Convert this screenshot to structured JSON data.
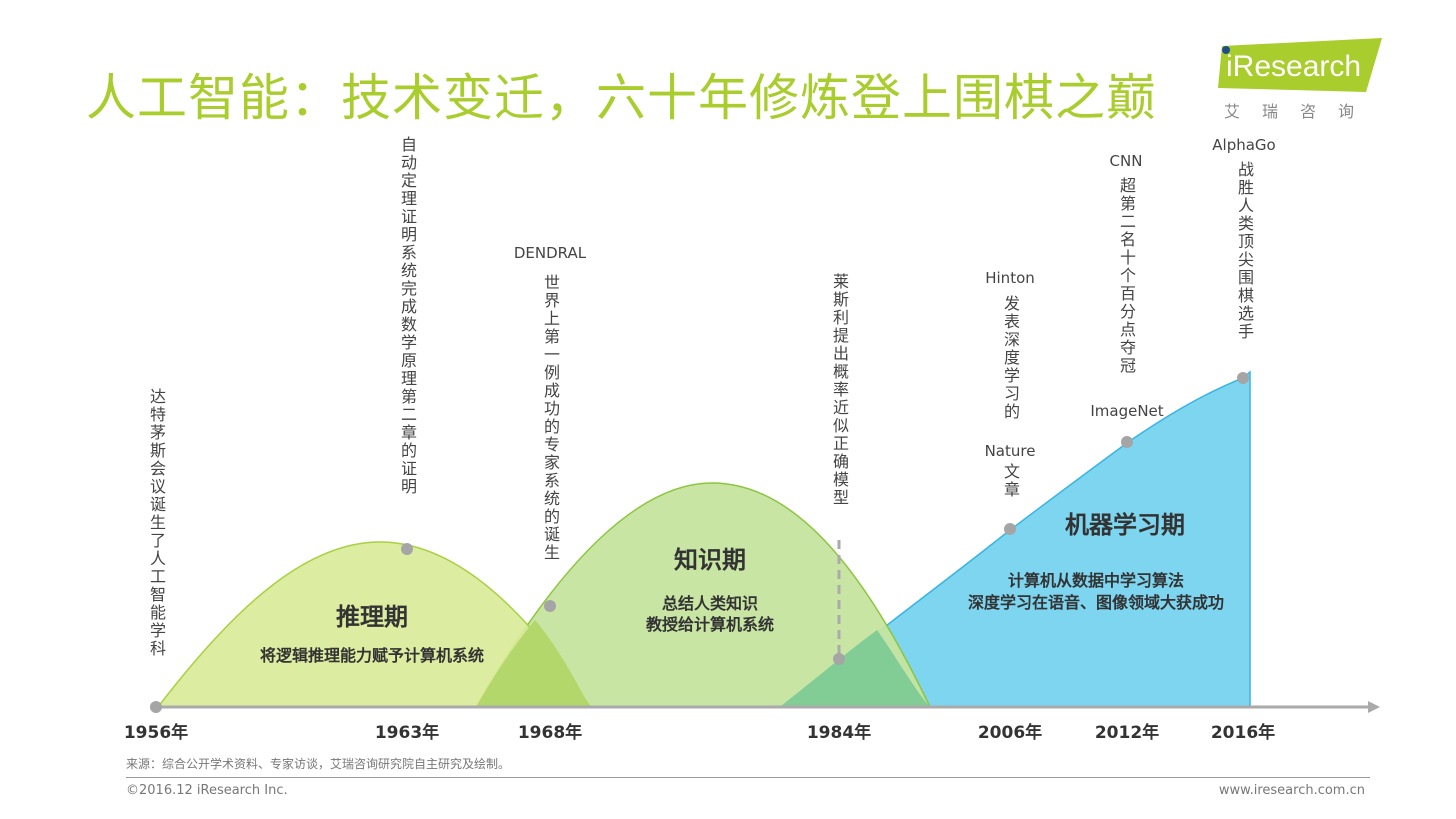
{
  "title": "人工智能：技术变迁，六十年修炼登上围棋之巅",
  "logo": {
    "word": "iResearch",
    "sub": "艾瑞咨询"
  },
  "years": [
    "1956年",
    "1963年",
    "1968年",
    "1984年",
    "2006年",
    "2012年",
    "2016年"
  ],
  "events": {
    "e1956": "达特茅斯会议诞生了人工智能学科",
    "e1963": "自动定理证明系统完成数学原理第二章的证明",
    "e1968_head": "DENDRAL",
    "e1968": "世界上第一例成功的专家系统的诞生",
    "e1984": "莱斯利提出概率近似正确模型",
    "e2006_head": "Hinton",
    "e2006": "发表深度学习的",
    "e2006_mid": "Nature",
    "e2006_tail": "文章",
    "e2012_head": "CNN",
    "e2012": "超第二名十个百分点夺冠",
    "e2012_tail": "ImageNet",
    "e2016_head": "AlphaGo",
    "e2016": "战胜人类顶尖围棋选手"
  },
  "periods": {
    "reasoning": {
      "name": "推理期",
      "desc1": "将逻辑推理能力赋予计算机系统"
    },
    "knowledge": {
      "name": "知识期",
      "desc1": "总结人类知识",
      "desc2": "教授给计算机系统"
    },
    "learning": {
      "name": "机器学习期",
      "desc1": "计算机从数据中学习算法",
      "desc2": "深度学习在语音、图像领域大获成功"
    }
  },
  "footer": {
    "source": "来源：综合公开学术资料、专家访谈，艾瑞咨询研究院自主研究及绘制。",
    "copyright": "©2016.12 iResearch Inc.",
    "website": "www.iresearch.com.cn"
  },
  "colors": {
    "reasoning": "#d6e796",
    "knowledge": "#bfe09a",
    "learning": "#6fd2f0",
    "overlap1": "#b0d66a",
    "overlap2": "#7fca93",
    "title": "#a8cd2d",
    "axis": "#aaaaaa",
    "dot": "#a5a5a5"
  }
}
